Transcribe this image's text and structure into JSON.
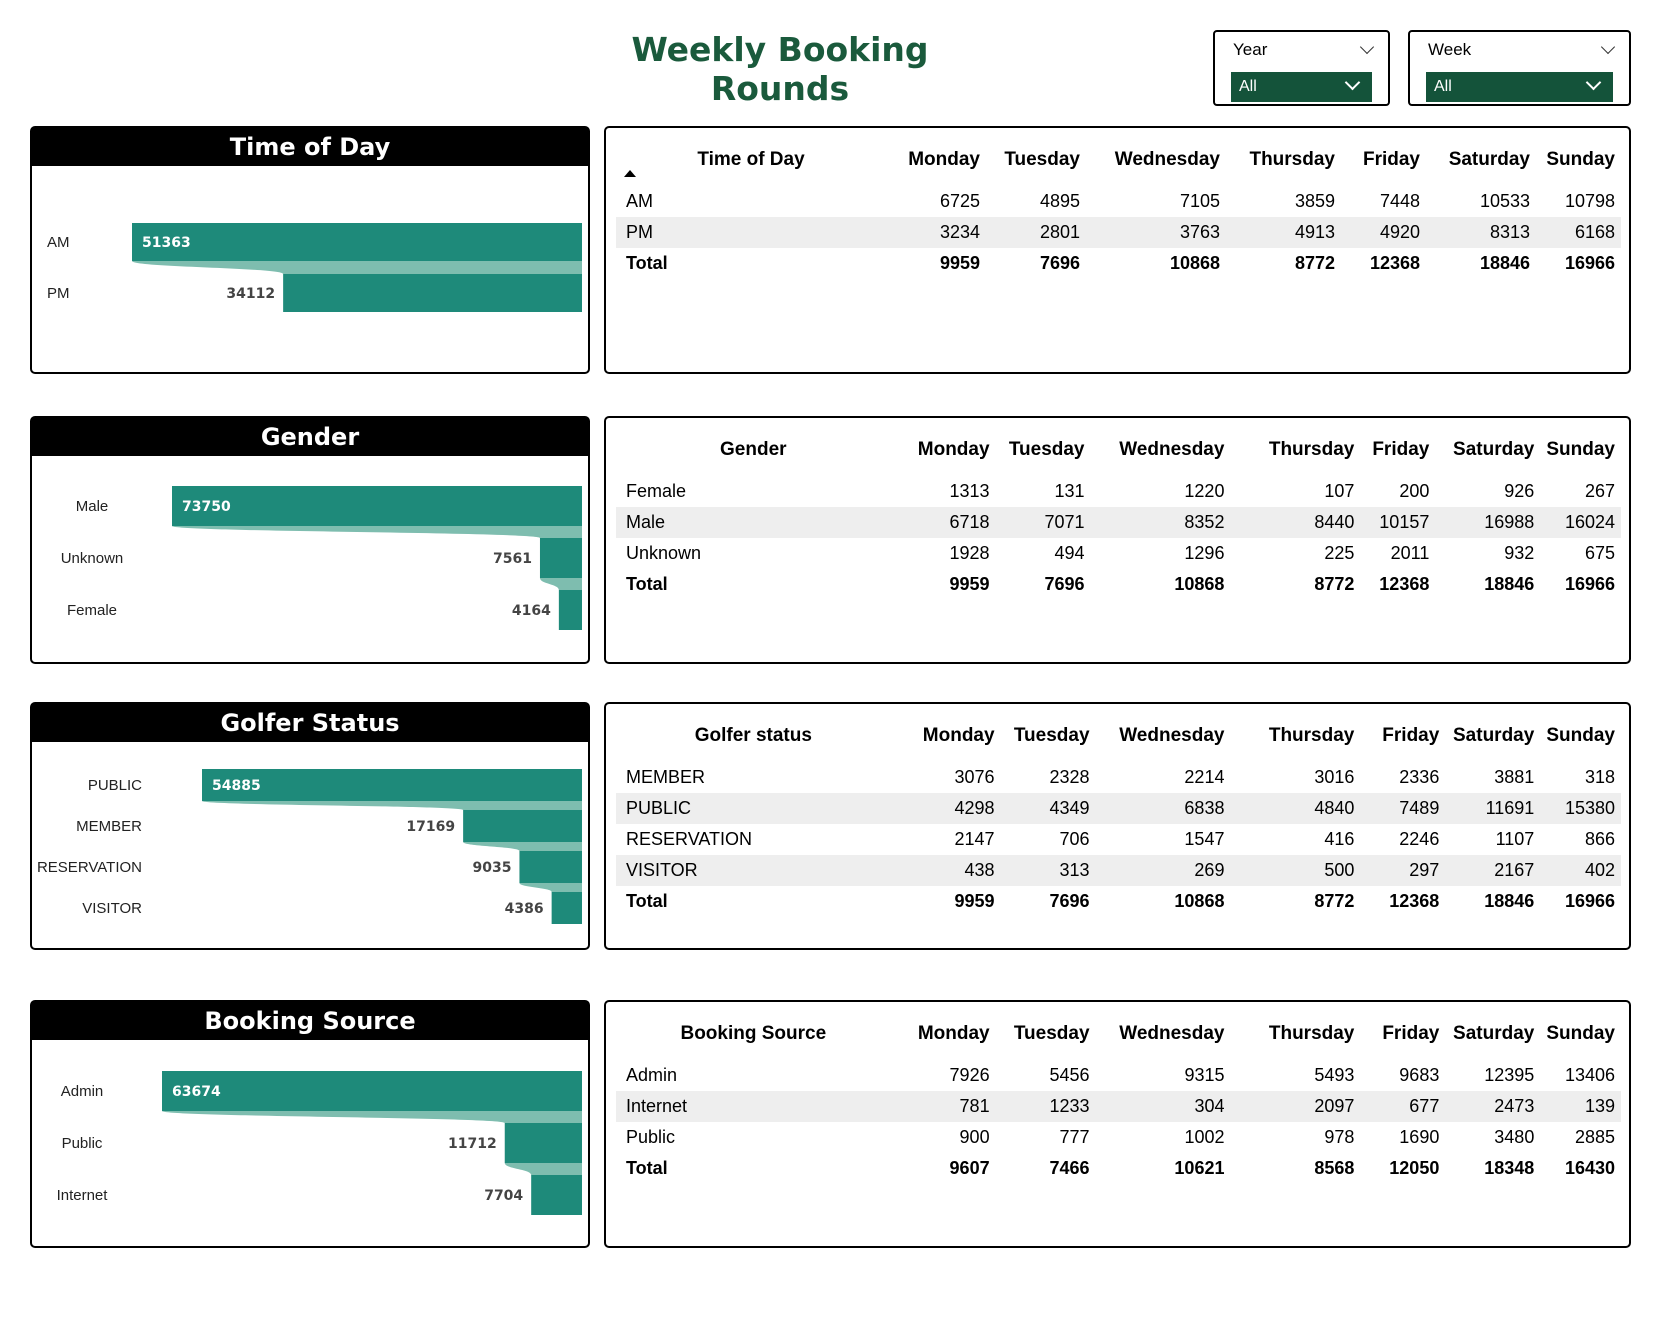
{
  "title": "Weekly Booking Rounds",
  "filters": [
    {
      "label": "Year",
      "value": "All"
    },
    {
      "label": "Week",
      "value": "All"
    }
  ],
  "colors": {
    "bar": "#1e8a7a",
    "connector": "#7ebdaf",
    "title": "#1a5a3c",
    "slicer": "#14533a"
  },
  "days": [
    "Monday",
    "Tuesday",
    "Wednesday",
    "Thursday",
    "Friday",
    "Saturday",
    "Sunday"
  ],
  "sections": [
    {
      "chart_title": "Time of Day",
      "table_header": "Time of Day",
      "sorted": true,
      "chart_data": {
        "type": "bar",
        "categories": [
          "AM",
          "PM"
        ],
        "values": [
          51363,
          34112
        ]
      },
      "rows": [
        {
          "label": "AM",
          "values": [
            "6725",
            "4895",
            "7105",
            "3859",
            "7448",
            "10533",
            "10798"
          ]
        },
        {
          "label": "PM",
          "values": [
            "3234",
            "2801",
            "3763",
            "4913",
            "4920",
            "8313",
            "6168"
          ]
        }
      ],
      "total": {
        "label": "Total",
        "values": [
          "9959",
          "7696",
          "10868",
          "8772",
          "12368",
          "18846",
          "16966"
        ]
      }
    },
    {
      "chart_title": "Gender",
      "table_header": "Gender",
      "sorted": false,
      "chart_data": {
        "type": "bar",
        "categories": [
          "Male",
          "Unknown",
          "Female"
        ],
        "values": [
          73750,
          7561,
          4164
        ]
      },
      "rows": [
        {
          "label": "Female",
          "values": [
            "1313",
            "131",
            "1220",
            "107",
            "200",
            "926",
            "267"
          ]
        },
        {
          "label": "Male",
          "values": [
            "6718",
            "7071",
            "8352",
            "8440",
            "10157",
            "16988",
            "16024"
          ]
        },
        {
          "label": "Unknown",
          "values": [
            "1928",
            "494",
            "1296",
            "225",
            "2011",
            "932",
            "675"
          ]
        }
      ],
      "total": {
        "label": "Total",
        "values": [
          "9959",
          "7696",
          "10868",
          "8772",
          "12368",
          "18846",
          "16966"
        ]
      }
    },
    {
      "chart_title": "Golfer Status",
      "table_header": "Golfer status",
      "sorted": false,
      "chart_data": {
        "type": "bar",
        "categories": [
          "PUBLIC",
          "MEMBER",
          "RESERVATION",
          "VISITOR"
        ],
        "values": [
          54885,
          17169,
          9035,
          4386
        ]
      },
      "rows": [
        {
          "label": "MEMBER",
          "values": [
            "3076",
            "2328",
            "2214",
            "3016",
            "2336",
            "3881",
            "318"
          ]
        },
        {
          "label": "PUBLIC",
          "values": [
            "4298",
            "4349",
            "6838",
            "4840",
            "7489",
            "11691",
            "15380"
          ]
        },
        {
          "label": "RESERVATION",
          "values": [
            "2147",
            "706",
            "1547",
            "416",
            "2246",
            "1107",
            "866"
          ]
        },
        {
          "label": "VISITOR",
          "values": [
            "438",
            "313",
            "269",
            "500",
            "297",
            "2167",
            "402"
          ]
        }
      ],
      "total": {
        "label": "Total",
        "values": [
          "9959",
          "7696",
          "10868",
          "8772",
          "12368",
          "18846",
          "16966"
        ]
      }
    },
    {
      "chart_title": "Booking Source",
      "table_header": "Booking Source",
      "sorted": false,
      "chart_data": {
        "type": "bar",
        "categories": [
          "Admin",
          "Public",
          "Internet"
        ],
        "values": [
          63674,
          11712,
          7704
        ]
      },
      "rows": [
        {
          "label": "Admin",
          "values": [
            "7926",
            "5456",
            "9315",
            "5493",
            "9683",
            "12395",
            "13406"
          ]
        },
        {
          "label": "Internet",
          "values": [
            "781",
            "1233",
            "304",
            "2097",
            "677",
            "2473",
            "139"
          ]
        },
        {
          "label": "Public",
          "values": [
            "900",
            "777",
            "1002",
            "978",
            "1690",
            "3480",
            "2885"
          ]
        }
      ],
      "total": {
        "label": "Total",
        "values": [
          "9607",
          "7466",
          "10621",
          "8568",
          "12050",
          "18348",
          "16430"
        ]
      }
    }
  ]
}
